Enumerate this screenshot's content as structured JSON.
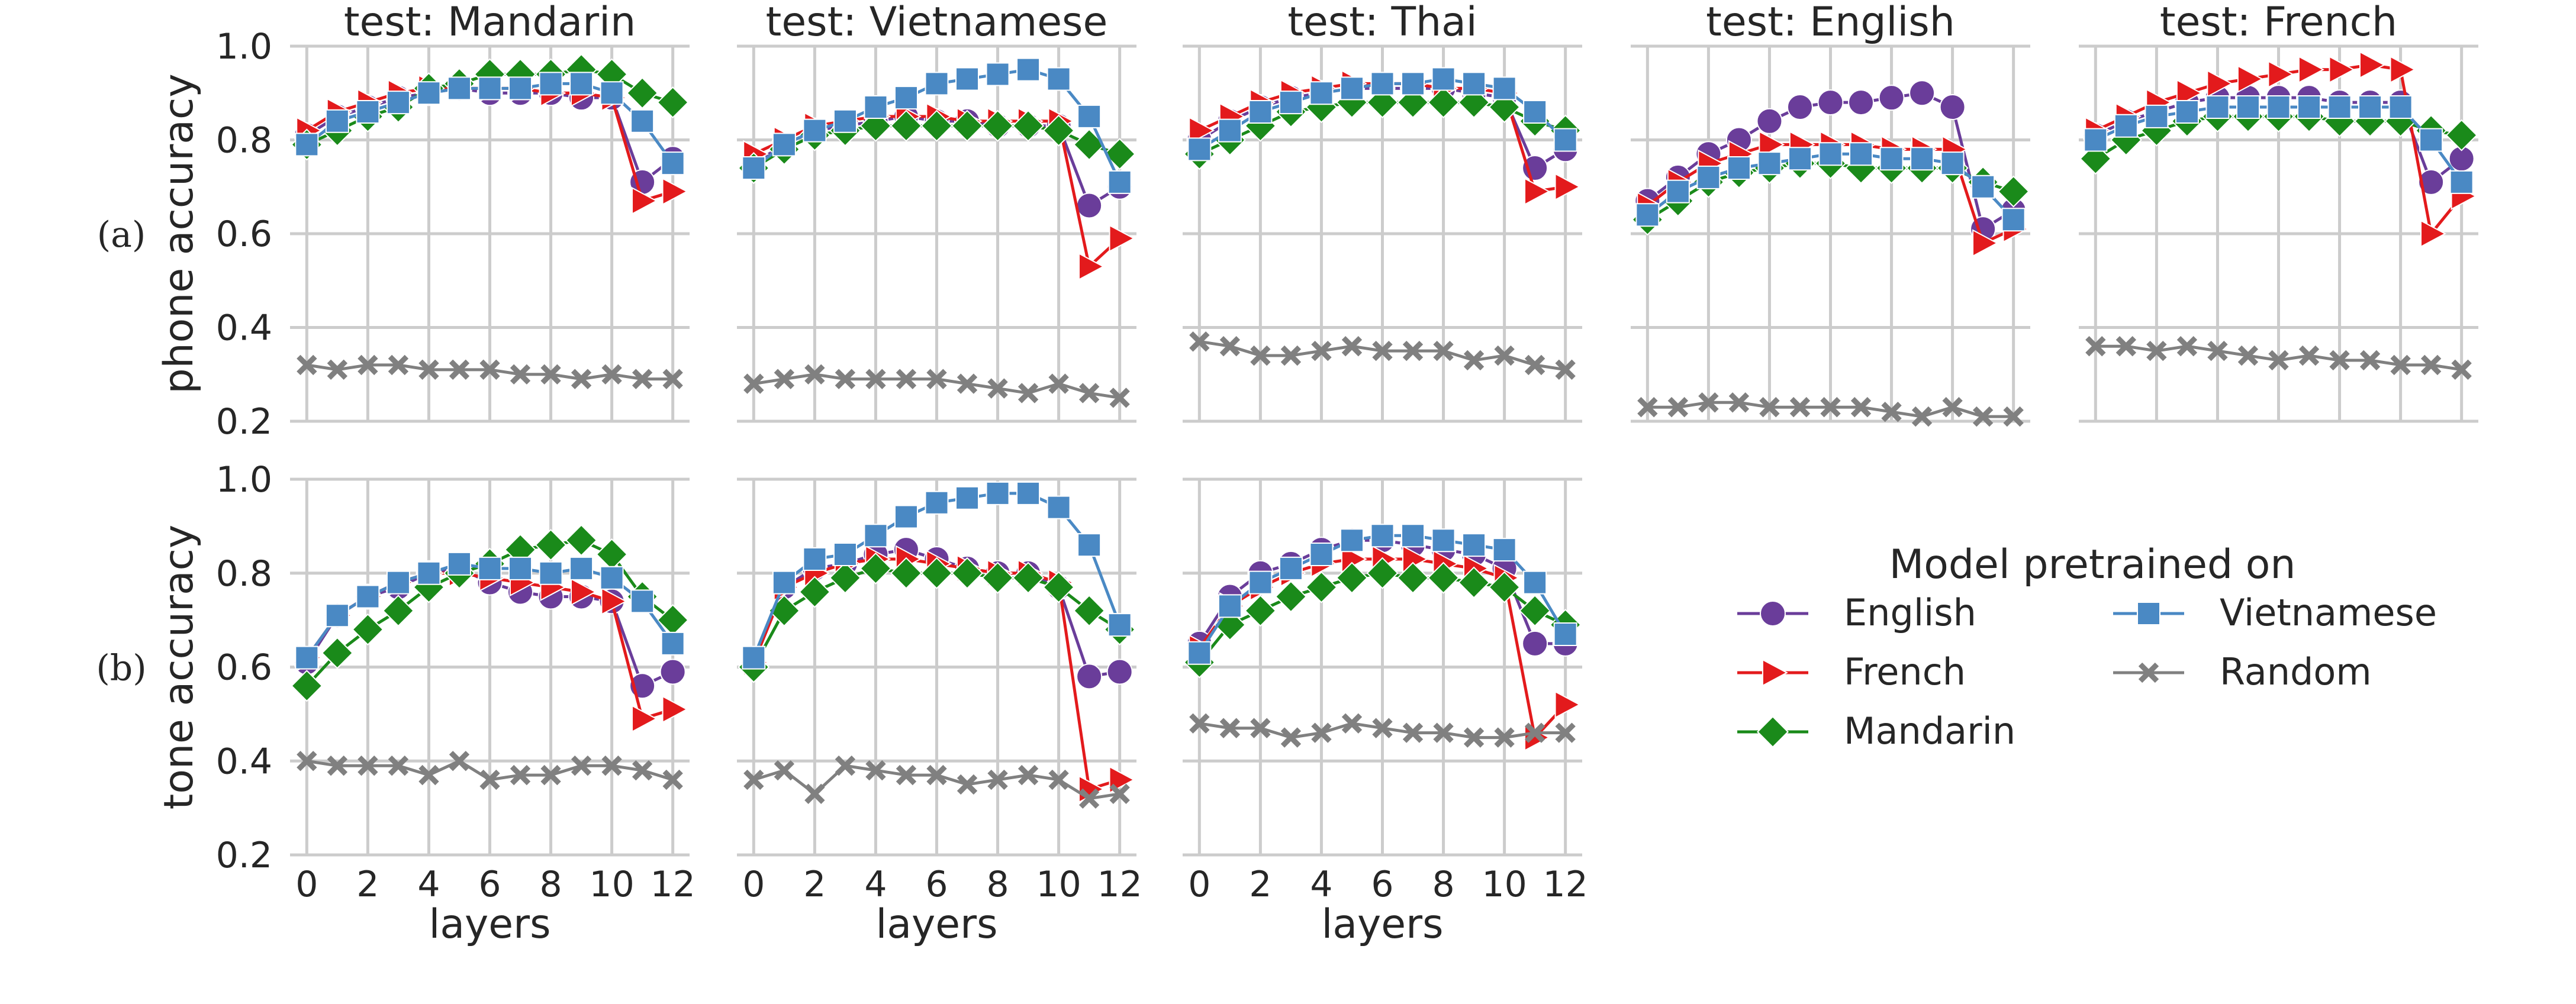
{
  "chart_data": {
    "type": "line",
    "legend": {
      "title": "Model pretrained on",
      "placement": "lower-right",
      "entries": [
        "English",
        "French",
        "Mandarin",
        "Vietnamese",
        "Random"
      ]
    },
    "colors": {
      "English": "#6a3d9a",
      "French": "#e31a1c",
      "Mandarin": "#1a8a1a",
      "Vietnamese": "#4a89c4",
      "Random": "#808080"
    },
    "markers": {
      "English": "circle",
      "French": "triangle-right",
      "Mandarin": "diamond",
      "Vietnamese": "square",
      "Random": "x"
    },
    "grid": true,
    "xlim": [
      0,
      12
    ],
    "xticks": [
      "0",
      "2",
      "4",
      "6",
      "8",
      "10",
      "12"
    ],
    "ylim": [
      0.2,
      1.0
    ],
    "yticks": [
      "0.2",
      "0.4",
      "0.6",
      "0.8",
      "1.0"
    ],
    "rows": [
      {
        "row_label": "(a)",
        "ylabel": "phone accuracy",
        "panels": [
          {
            "title": "test: Mandarin",
            "series": [
              {
                "name": "English",
                "values": [
                  0.81,
                  0.85,
                  0.87,
                  0.89,
                  0.9,
                  0.91,
                  0.9,
                  0.9,
                  0.9,
                  0.89,
                  0.89,
                  0.71,
                  0.76
                ]
              },
              {
                "name": "French",
                "values": [
                  0.82,
                  0.86,
                  0.88,
                  0.9,
                  0.91,
                  0.91,
                  0.91,
                  0.91,
                  0.9,
                  0.9,
                  0.89,
                  0.67,
                  0.69
                ]
              },
              {
                "name": "Mandarin",
                "values": [
                  0.79,
                  0.82,
                  0.85,
                  0.87,
                  0.91,
                  0.92,
                  0.94,
                  0.94,
                  0.94,
                  0.95,
                  0.94,
                  0.9,
                  0.88
                ]
              },
              {
                "name": "Vietnamese",
                "values": [
                  0.79,
                  0.84,
                  0.86,
                  0.88,
                  0.9,
                  0.91,
                  0.91,
                  0.91,
                  0.92,
                  0.92,
                  0.9,
                  0.84,
                  0.75
                ]
              },
              {
                "name": "Random",
                "values": [
                  0.32,
                  0.31,
                  0.32,
                  0.32,
                  0.31,
                  0.31,
                  0.31,
                  0.3,
                  0.3,
                  0.29,
                  0.3,
                  0.29,
                  0.29
                ]
              }
            ]
          },
          {
            "title": "test: Vietnamese",
            "series": [
              {
                "name": "English",
                "values": [
                  0.75,
                  0.79,
                  0.82,
                  0.83,
                  0.84,
                  0.85,
                  0.84,
                  0.84,
                  0.83,
                  0.83,
                  0.83,
                  0.66,
                  0.7
                ]
              },
              {
                "name": "French",
                "values": [
                  0.77,
                  0.8,
                  0.83,
                  0.84,
                  0.85,
                  0.85,
                  0.85,
                  0.84,
                  0.84,
                  0.84,
                  0.84,
                  0.53,
                  0.59
                ]
              },
              {
                "name": "Mandarin",
                "values": [
                  0.74,
                  0.78,
                  0.81,
                  0.82,
                  0.83,
                  0.83,
                  0.83,
                  0.83,
                  0.83,
                  0.83,
                  0.82,
                  0.79,
                  0.77
                ]
              },
              {
                "name": "Vietnamese",
                "values": [
                  0.74,
                  0.79,
                  0.82,
                  0.84,
                  0.87,
                  0.89,
                  0.92,
                  0.93,
                  0.94,
                  0.95,
                  0.93,
                  0.85,
                  0.71
                ]
              },
              {
                "name": "Random",
                "values": [
                  0.28,
                  0.29,
                  0.3,
                  0.29,
                  0.29,
                  0.29,
                  0.29,
                  0.28,
                  0.27,
                  0.26,
                  0.28,
                  0.26,
                  0.25
                ]
              }
            ]
          },
          {
            "title": "test: Thai",
            "series": [
              {
                "name": "English",
                "values": [
                  0.8,
                  0.84,
                  0.87,
                  0.89,
                  0.9,
                  0.91,
                  0.91,
                  0.91,
                  0.91,
                  0.9,
                  0.89,
                  0.74,
                  0.78
                ]
              },
              {
                "name": "French",
                "values": [
                  0.82,
                  0.85,
                  0.88,
                  0.9,
                  0.91,
                  0.92,
                  0.92,
                  0.92,
                  0.91,
                  0.91,
                  0.9,
                  0.69,
                  0.7
                ]
              },
              {
                "name": "Mandarin",
                "values": [
                  0.77,
                  0.8,
                  0.83,
                  0.86,
                  0.87,
                  0.88,
                  0.88,
                  0.88,
                  0.88,
                  0.88,
                  0.87,
                  0.84,
                  0.82
                ]
              },
              {
                "name": "Vietnamese",
                "values": [
                  0.78,
                  0.82,
                  0.86,
                  0.88,
                  0.9,
                  0.91,
                  0.92,
                  0.92,
                  0.93,
                  0.92,
                  0.91,
                  0.86,
                  0.8
                ]
              },
              {
                "name": "Random",
                "values": [
                  0.37,
                  0.36,
                  0.34,
                  0.34,
                  0.35,
                  0.36,
                  0.35,
                  0.35,
                  0.35,
                  0.33,
                  0.34,
                  0.32,
                  0.31
                ]
              }
            ]
          },
          {
            "title": "test: English",
            "series": [
              {
                "name": "English",
                "values": [
                  0.67,
                  0.72,
                  0.77,
                  0.8,
                  0.84,
                  0.87,
                  0.88,
                  0.88,
                  0.89,
                  0.9,
                  0.87,
                  0.61,
                  0.65
                ]
              },
              {
                "name": "French",
                "values": [
                  0.66,
                  0.71,
                  0.75,
                  0.77,
                  0.79,
                  0.79,
                  0.79,
                  0.79,
                  0.78,
                  0.78,
                  0.78,
                  0.58,
                  0.61
                ]
              },
              {
                "name": "Mandarin",
                "values": [
                  0.63,
                  0.67,
                  0.71,
                  0.73,
                  0.74,
                  0.75,
                  0.75,
                  0.74,
                  0.74,
                  0.74,
                  0.74,
                  0.71,
                  0.69
                ]
              },
              {
                "name": "Vietnamese",
                "values": [
                  0.64,
                  0.69,
                  0.72,
                  0.74,
                  0.75,
                  0.76,
                  0.77,
                  0.77,
                  0.76,
                  0.76,
                  0.75,
                  0.7,
                  0.63
                ]
              },
              {
                "name": "Random",
                "values": [
                  0.23,
                  0.23,
                  0.24,
                  0.24,
                  0.23,
                  0.23,
                  0.23,
                  0.23,
                  0.22,
                  0.21,
                  0.23,
                  0.21,
                  0.21
                ]
              }
            ]
          },
          {
            "title": "test: French",
            "series": [
              {
                "name": "English",
                "values": [
                  0.81,
                  0.84,
                  0.86,
                  0.88,
                  0.89,
                  0.89,
                  0.89,
                  0.89,
                  0.88,
                  0.88,
                  0.88,
                  0.71,
                  0.76
                ]
              },
              {
                "name": "French",
                "values": [
                  0.82,
                  0.85,
                  0.88,
                  0.9,
                  0.92,
                  0.93,
                  0.94,
                  0.95,
                  0.95,
                  0.96,
                  0.95,
                  0.6,
                  0.68
                ]
              },
              {
                "name": "Mandarin",
                "values": [
                  0.76,
                  0.8,
                  0.82,
                  0.84,
                  0.85,
                  0.85,
                  0.85,
                  0.85,
                  0.84,
                  0.84,
                  0.84,
                  0.82,
                  0.81
                ]
              },
              {
                "name": "Vietnamese",
                "values": [
                  0.8,
                  0.83,
                  0.85,
                  0.86,
                  0.87,
                  0.87,
                  0.87,
                  0.87,
                  0.87,
                  0.87,
                  0.87,
                  0.8,
                  0.71
                ]
              },
              {
                "name": "Random",
                "values": [
                  0.36,
                  0.36,
                  0.35,
                  0.36,
                  0.35,
                  0.34,
                  0.33,
                  0.34,
                  0.33,
                  0.33,
                  0.32,
                  0.32,
                  0.31
                ]
              }
            ]
          }
        ]
      },
      {
        "row_label": "(b)",
        "ylabel": "tone accuracy",
        "xlabel": "layers",
        "panels": [
          {
            "title": "",
            "series": [
              {
                "name": "English",
                "values": [
                  0.61,
                  0.71,
                  0.75,
                  0.77,
                  0.8,
                  0.81,
                  0.78,
                  0.76,
                  0.75,
                  0.75,
                  0.74,
                  0.56,
                  0.59
                ]
              },
              {
                "name": "French",
                "values": [
                  0.62,
                  0.71,
                  0.75,
                  0.78,
                  0.8,
                  0.8,
                  0.79,
                  0.78,
                  0.77,
                  0.76,
                  0.74,
                  0.49,
                  0.51
                ]
              },
              {
                "name": "Mandarin",
                "values": [
                  0.56,
                  0.63,
                  0.68,
                  0.72,
                  0.77,
                  0.8,
                  0.82,
                  0.85,
                  0.86,
                  0.87,
                  0.84,
                  0.75,
                  0.7
                ]
              },
              {
                "name": "Vietnamese",
                "values": [
                  0.62,
                  0.71,
                  0.75,
                  0.78,
                  0.8,
                  0.82,
                  0.81,
                  0.81,
                  0.8,
                  0.81,
                  0.79,
                  0.74,
                  0.65
                ]
              },
              {
                "name": "Random",
                "values": [
                  0.4,
                  0.39,
                  0.39,
                  0.39,
                  0.37,
                  0.4,
                  0.36,
                  0.37,
                  0.37,
                  0.39,
                  0.39,
                  0.38,
                  0.36
                ]
              }
            ]
          },
          {
            "title": "",
            "series": [
              {
                "name": "English",
                "values": [
                  0.61,
                  0.77,
                  0.81,
                  0.82,
                  0.84,
                  0.85,
                  0.83,
                  0.81,
                  0.8,
                  0.8,
                  0.77,
                  0.58,
                  0.59
                ]
              },
              {
                "name": "French",
                "values": [
                  0.61,
                  0.77,
                  0.8,
                  0.82,
                  0.83,
                  0.83,
                  0.82,
                  0.81,
                  0.8,
                  0.8,
                  0.78,
                  0.34,
                  0.36
                ]
              },
              {
                "name": "Mandarin",
                "values": [
                  0.6,
                  0.72,
                  0.76,
                  0.79,
                  0.81,
                  0.8,
                  0.8,
                  0.8,
                  0.79,
                  0.79,
                  0.77,
                  0.72,
                  0.68
                ]
              },
              {
                "name": "Vietnamese",
                "values": [
                  0.62,
                  0.78,
                  0.83,
                  0.84,
                  0.88,
                  0.92,
                  0.95,
                  0.96,
                  0.97,
                  0.97,
                  0.94,
                  0.86,
                  0.69
                ]
              },
              {
                "name": "Random",
                "values": [
                  0.36,
                  0.38,
                  0.33,
                  0.39,
                  0.38,
                  0.37,
                  0.37,
                  0.35,
                  0.36,
                  0.37,
                  0.36,
                  0.32,
                  0.33
                ]
              }
            ]
          },
          {
            "title": "",
            "series": [
              {
                "name": "English",
                "values": [
                  0.65,
                  0.75,
                  0.8,
                  0.82,
                  0.85,
                  0.87,
                  0.87,
                  0.86,
                  0.85,
                  0.84,
                  0.81,
                  0.65,
                  0.65
                ]
              },
              {
                "name": "French",
                "values": [
                  0.64,
                  0.73,
                  0.77,
                  0.8,
                  0.82,
                  0.83,
                  0.83,
                  0.83,
                  0.82,
                  0.81,
                  0.79,
                  0.45,
                  0.52
                ]
              },
              {
                "name": "Mandarin",
                "values": [
                  0.61,
                  0.69,
                  0.72,
                  0.75,
                  0.77,
                  0.79,
                  0.8,
                  0.79,
                  0.79,
                  0.78,
                  0.77,
                  0.72,
                  0.69
                ]
              },
              {
                "name": "Vietnamese",
                "values": [
                  0.63,
                  0.73,
                  0.78,
                  0.81,
                  0.84,
                  0.87,
                  0.88,
                  0.88,
                  0.87,
                  0.86,
                  0.85,
                  0.78,
                  0.67
                ]
              },
              {
                "name": "Random",
                "values": [
                  0.48,
                  0.47,
                  0.47,
                  0.45,
                  0.46,
                  0.48,
                  0.47,
                  0.46,
                  0.46,
                  0.45,
                  0.45,
                  0.46,
                  0.46
                ]
              }
            ]
          }
        ]
      }
    ]
  }
}
